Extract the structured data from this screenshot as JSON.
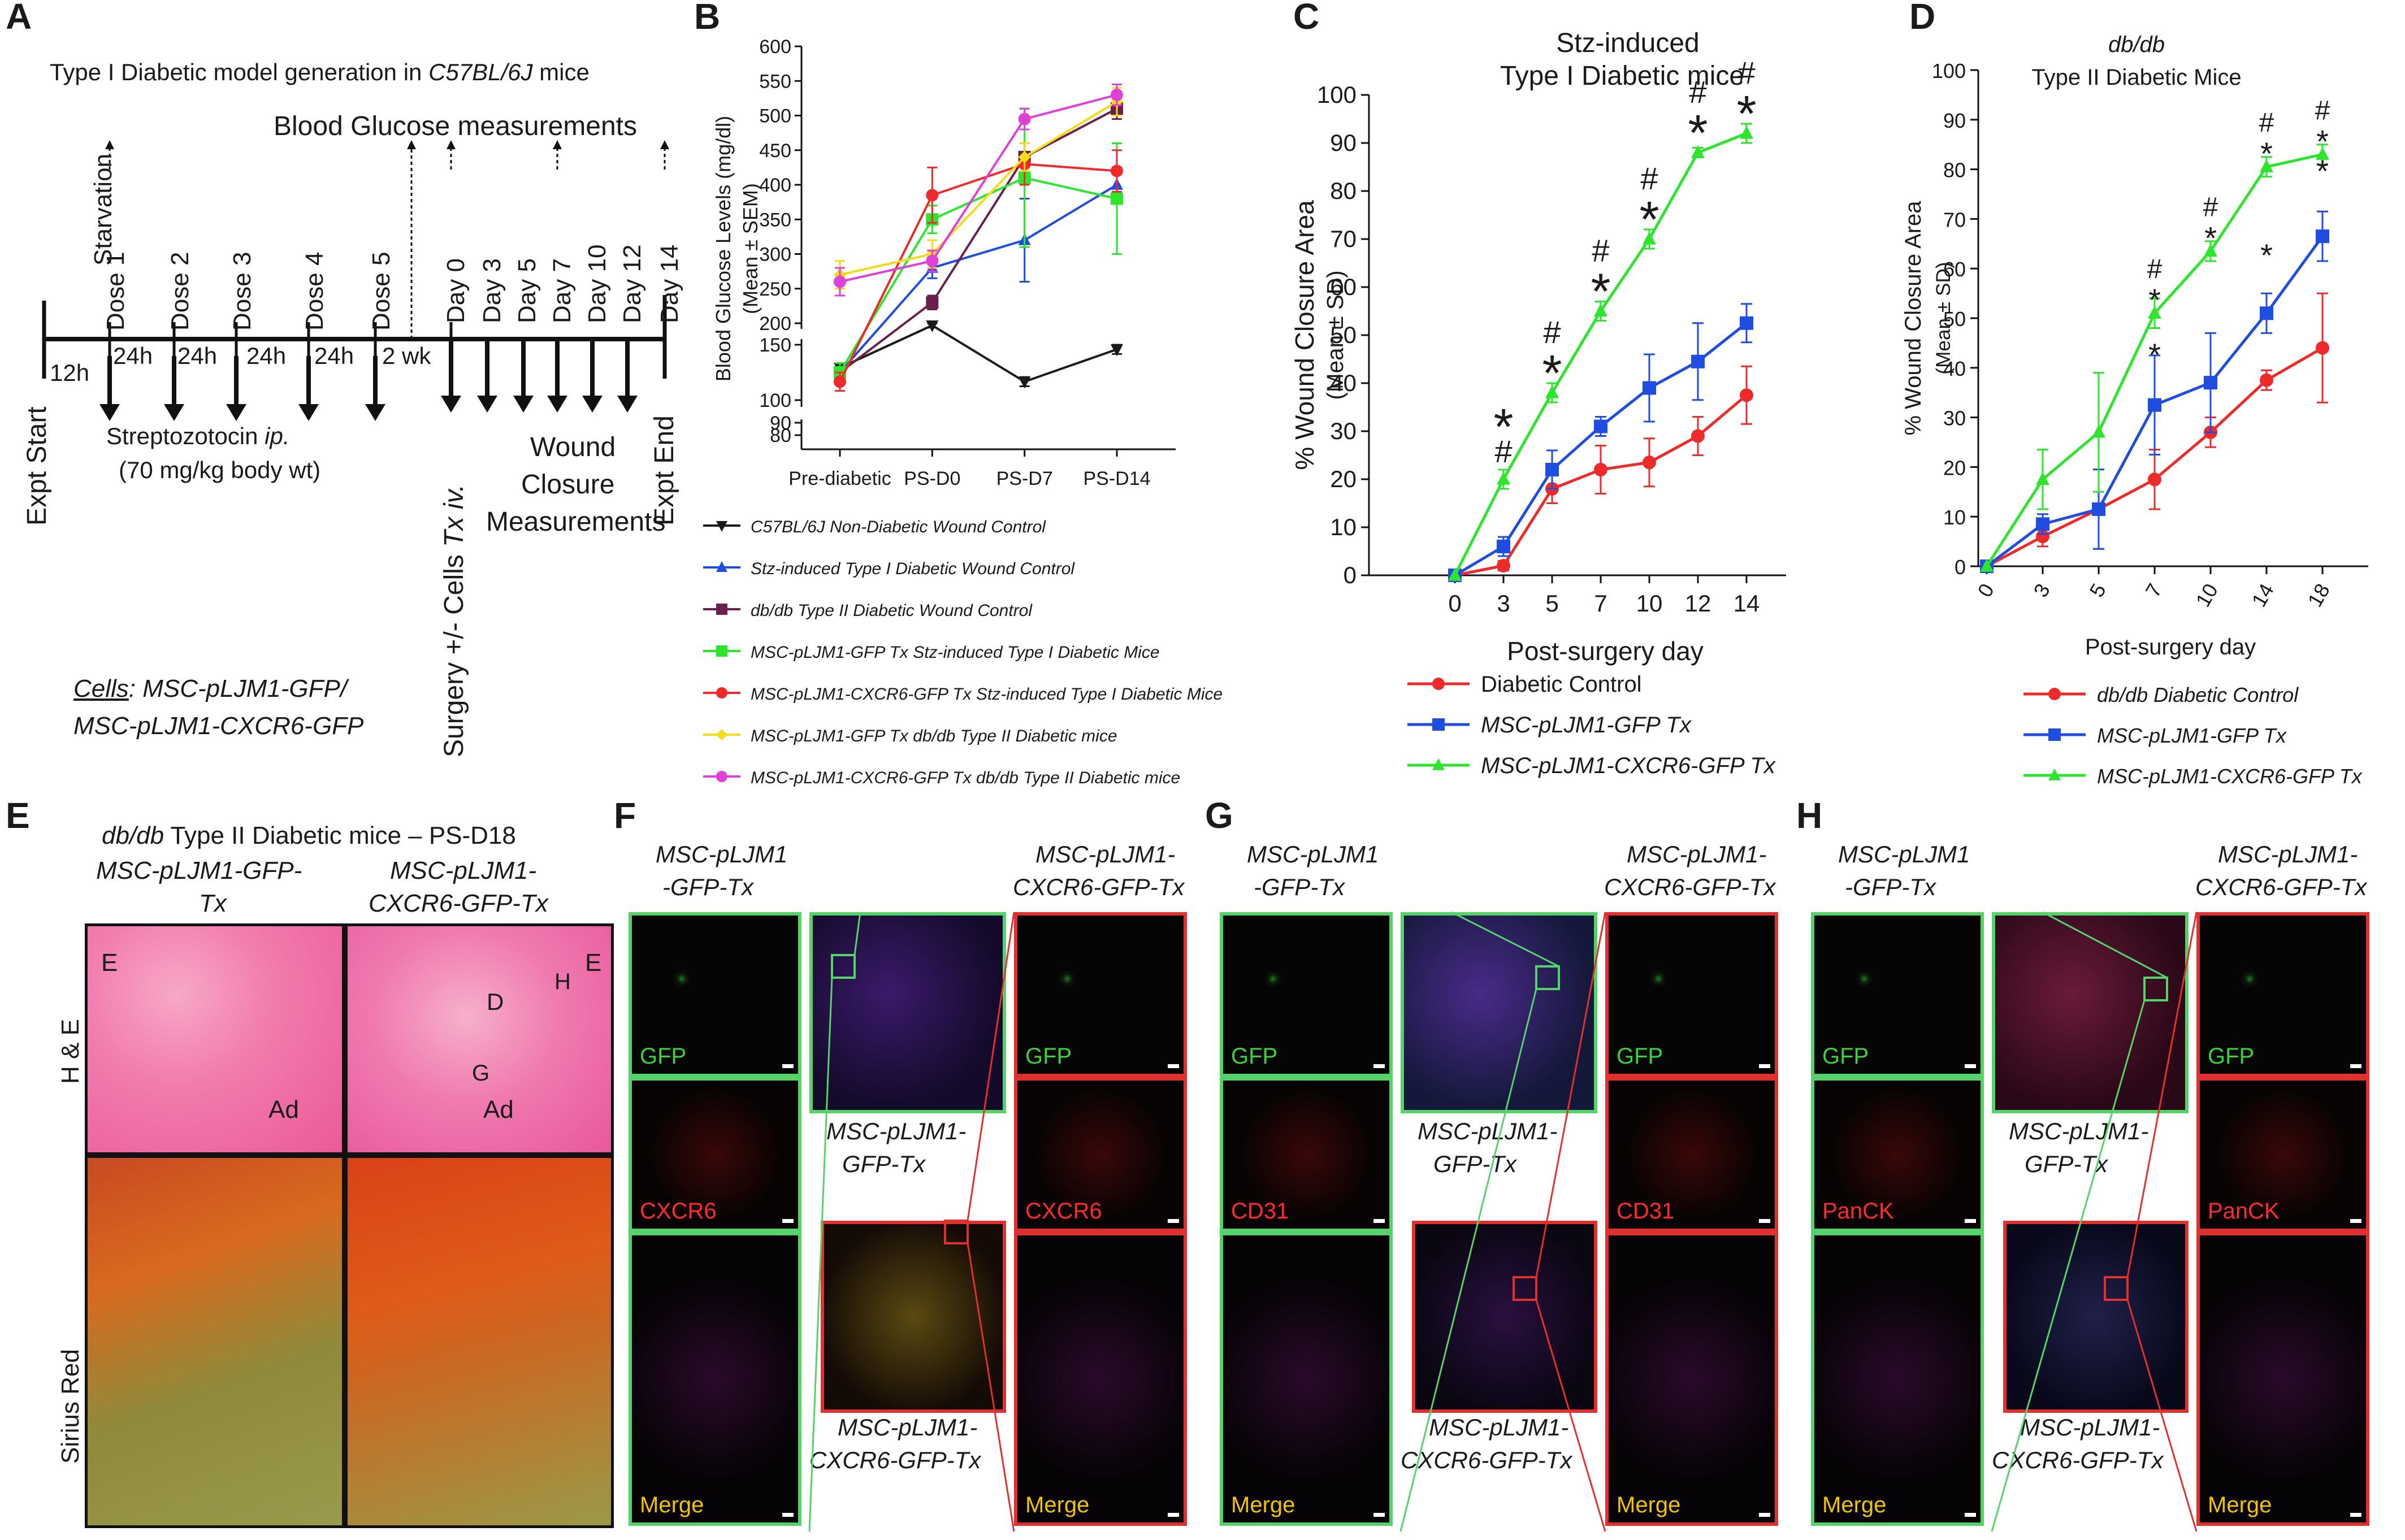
{
  "colors": {
    "black": "#1a1a1a",
    "blue": "#1f4de0",
    "maroon": "#6b1f4c",
    "green": "#2ee52e",
    "red": "#ee2a2a",
    "yellow": "#f2dd1a",
    "magenta": "#e040d8",
    "tile_green": "#55d36a",
    "tile_red": "#e03030"
  },
  "panelA": {
    "letter": "A",
    "title_prefix": "Type I Diabetic model generation in ",
    "title_strain": "C57BL/6J",
    "title_suffix": " mice",
    "blood_glucose": "Blood Glucose measurements",
    "starvation": "Starvation",
    "doses": [
      "Dose 1",
      "Dose 2",
      "Dose 3",
      "Dose 4",
      "Dose 5"
    ],
    "days": [
      "Day 0",
      "Day 3",
      "Day 5",
      "Day 7",
      "Day 10",
      "Day 12",
      "Day 14"
    ],
    "intervals": [
      "12h",
      "24h",
      "24h",
      "24h",
      "24h",
      "2 wk"
    ],
    "stz_line1_prefix": "Streptozotocin ",
    "stz_line1_route": "ip.",
    "stz_line2": "(70 mg/kg body wt)",
    "expt_start": "Expt Start",
    "expt_end": "Expt End",
    "surgery_prefix": "Surgery +/- Cells ",
    "surgery_route": "Tx iv.",
    "wound1": "Wound",
    "wound2": "Closure",
    "wound3": "Measurements",
    "cells_label": "Cells",
    "cells_line1": ": MSC-pLJM1-GFP/",
    "cells_line2": "MSC-pLJM1-CXCR6-GFP"
  },
  "panelE": {
    "letter": "E",
    "title_italic": "db/db",
    "title_rest": " Type II  Diabetic mice – PS-D18",
    "left_title1": "MSC-pLJM1-GFP-",
    "left_title2": "Tx",
    "right_title1": "MSC-pLJM1-",
    "right_title2": "CXCR6-GFP-Tx",
    "row1": "H & E",
    "row2": "Sirius Red",
    "ann_E": "E",
    "ann_Ad": "Ad",
    "ann_D": "D",
    "ann_H": "H",
    "ann_G": "G"
  },
  "panelsFGH": [
    {
      "letter": "F",
      "left_t1": "MSC-pLJM1",
      "left_t2": "-GFP-Tx",
      "right_t1": "MSC-pLJM1-",
      "right_t2": "CXCR6-GFP-Tx",
      "mid_t1": "MSC-pLJM1-",
      "mid_t2": "GFP-Tx",
      "bot_t1": "MSC-pLJM1-",
      "bot_t2": "CXCR6-GFP-Tx",
      "gfp": "GFP",
      "marker": "CXCR6",
      "merge": "Merge"
    },
    {
      "letter": "G",
      "left_t1": "MSC-pLJM1",
      "left_t2": "-GFP-Tx",
      "right_t1": "MSC-pLJM1-",
      "right_t2": "CXCR6-GFP-Tx",
      "mid_t1": "MSC-pLJM1-",
      "mid_t2": "GFP-Tx",
      "bot_t1": "MSC-pLJM1-",
      "bot_t2": "CXCR6-GFP-Tx",
      "gfp": "GFP",
      "marker": "CD31",
      "merge": "Merge"
    },
    {
      "letter": "H",
      "left_t1": "MSC-pLJM1",
      "left_t2": "-GFP-Tx",
      "right_t1": "MSC-pLJM1-",
      "right_t2": "CXCR6-GFP-Tx",
      "mid_t1": "MSC-pLJM1-",
      "mid_t2": "GFP-Tx",
      "bot_t1": "MSC-pLJM1-",
      "bot_t2": "CXCR6-GFP-Tx",
      "gfp": "GFP",
      "marker": "PanCK",
      "merge": "Merge"
    }
  ],
  "chart_data": [
    {
      "panel": "B",
      "type": "line",
      "title": "",
      "xlabel": "",
      "ylabel": "Blood Glucose Levels (mg/dl) (Mean ± SEM)",
      "categories": [
        "Pre-diabetic",
        "PS-D0",
        "PS-D7",
        "PS-D14"
      ],
      "y_ticks_upper": [
        200,
        250,
        300,
        350,
        400,
        450,
        500,
        550,
        600
      ],
      "y_ticks_lower": [
        80,
        90,
        100,
        150
      ],
      "y_break": "axis break between 80 and 90 and between 150 and 200",
      "ylim": [
        80,
        600
      ],
      "series": [
        {
          "name": "C57BL/6J Non-Diabetic Wound Control",
          "color": "black",
          "marker": "tri-down",
          "values": [
            125,
            195,
            110,
            145
          ],
          "err": [
            5,
            5,
            5,
            5
          ]
        },
        {
          "name": "Stz-induced Type I Diabetic Wound Control",
          "color": "blue",
          "marker": "tri-up",
          "values": [
            120,
            280,
            320,
            400
          ],
          "err": [
            10,
            15,
            60,
            25
          ]
        },
        {
          "name": "db/db Type II Diabetic Wound Control",
          "color": "maroon",
          "marker": "square",
          "values": [
            120,
            230,
            440,
            510
          ],
          "err": [
            10,
            10,
            20,
            15
          ]
        },
        {
          "name": "MSC-pLJM1-GFP Tx Stz-induced Type I Diabetic Mice",
          "color": "green",
          "marker": "square",
          "values": [
            120,
            350,
            410,
            380
          ],
          "err": [
            10,
            20,
            100,
            80
          ]
        },
        {
          "name": "MSC-pLJM1-CXCR6-GFP Tx Stz-induced Type I Diabetic Mice",
          "color": "red",
          "marker": "circle",
          "values": [
            110,
            385,
            430,
            420
          ],
          "err": [
            10,
            40,
            30,
            30
          ]
        },
        {
          "name": "MSC-pLJM1-GFP Tx db/db Type II Diabetic mice",
          "color": "yellow",
          "marker": "diamond",
          "values": [
            270,
            300,
            440,
            520
          ],
          "err": [
            20,
            20,
            20,
            20
          ]
        },
        {
          "name": "MSC-pLJM1-CXCR6-GFP Tx db/db Type II Diabetic mice",
          "color": "magenta",
          "marker": "circle",
          "values": [
            260,
            290,
            495,
            530
          ],
          "err": [
            20,
            15,
            15,
            15
          ]
        }
      ]
    },
    {
      "panel": "C",
      "type": "line",
      "title": "Stz-induced\nType I Diabetic mice",
      "xlabel": "Post-surgery day",
      "ylabel": "% Wound Closure Area (Mean ± SD)",
      "x": [
        0,
        3,
        5,
        7,
        10,
        12,
        14
      ],
      "x_ticks": [
        "0",
        "3",
        "5",
        "7",
        "10",
        "12",
        "14"
      ],
      "ylim": [
        0,
        100
      ],
      "y_ticks": [
        0,
        10,
        20,
        30,
        40,
        50,
        60,
        70,
        80,
        90,
        100
      ],
      "series": [
        {
          "name": "Diabetic Control",
          "color": "red",
          "marker": "circle",
          "values": [
            0,
            2,
            18,
            22,
            23.5,
            29,
            37.5
          ],
          "err": [
            0,
            1,
            3,
            5,
            5,
            4,
            6
          ]
        },
        {
          "name": "MSC-pLJM1-GFP Tx",
          "color": "blue",
          "marker": "square",
          "values": [
            0,
            6,
            22,
            31,
            39,
            44.5,
            52.5
          ],
          "err": [
            0,
            2,
            4,
            2,
            7,
            8,
            4
          ]
        },
        {
          "name": "MSC-pLJM1-CXCR6-GFP Tx",
          "color": "green",
          "marker": "triangle",
          "values": [
            0,
            20,
            38,
            55,
            70,
            88,
            92
          ],
          "err": [
            0,
            2,
            2,
            2,
            2,
            1,
            2
          ]
        }
      ],
      "annotations": [
        {
          "x": 3,
          "text": "*\n#"
        },
        {
          "x": 5,
          "text": "#\n*"
        },
        {
          "x": 7,
          "text": "#\n*"
        },
        {
          "x": 10,
          "text": "#\n*"
        },
        {
          "x": 12,
          "text": "#\n*"
        },
        {
          "x": 14,
          "text": "#\n*"
        }
      ]
    },
    {
      "panel": "D",
      "type": "line",
      "title_italic": "db/db",
      "title": "Type  II  Diabetic Mice",
      "xlabel": "Post-surgery day",
      "ylabel": "% Wound Closure Area (Mean ± SD)",
      "x": [
        0,
        3,
        5,
        7,
        10,
        14,
        18
      ],
      "x_ticks": [
        "0",
        "3",
        "5",
        "7",
        "10",
        "14",
        "18"
      ],
      "ylim": [
        0,
        100
      ],
      "y_ticks": [
        0,
        10,
        20,
        30,
        40,
        50,
        60,
        70,
        80,
        90,
        100
      ],
      "series": [
        {
          "name": "db/db Diabetic Control",
          "color": "red",
          "marker": "circle",
          "values": [
            0,
            6,
            11.5,
            17.5,
            27,
            37.5,
            44
          ],
          "err": [
            0,
            2,
            8,
            6,
            3,
            2,
            11
          ]
        },
        {
          "name": "MSC-pLJM1-GFP Tx",
          "color": "blue",
          "marker": "square",
          "values": [
            0,
            8.5,
            11.5,
            32.5,
            37,
            51,
            66.5
          ],
          "err": [
            0,
            2,
            8,
            10,
            10,
            4,
            5
          ]
        },
        {
          "name": "MSC-pLJM1-CXCR6-GFP Tx",
          "color": "green",
          "marker": "triangle",
          "values": [
            0,
            17.5,
            27,
            51,
            63.5,
            80.5,
            83
          ],
          "err": [
            0,
            6,
            12,
            3,
            2,
            2,
            2
          ]
        }
      ],
      "annotations": [
        {
          "x": 7,
          "text": "#\n*"
        },
        {
          "x": 7,
          "y": 40,
          "text": "*"
        },
        {
          "x": 10,
          "text": "#\n*"
        },
        {
          "x": 14,
          "text": "#\n*"
        },
        {
          "x": 14,
          "y": 60,
          "text": "*"
        },
        {
          "x": 18,
          "text": "#\n*"
        },
        {
          "x": 18,
          "y": 77,
          "text": "*"
        }
      ]
    }
  ]
}
